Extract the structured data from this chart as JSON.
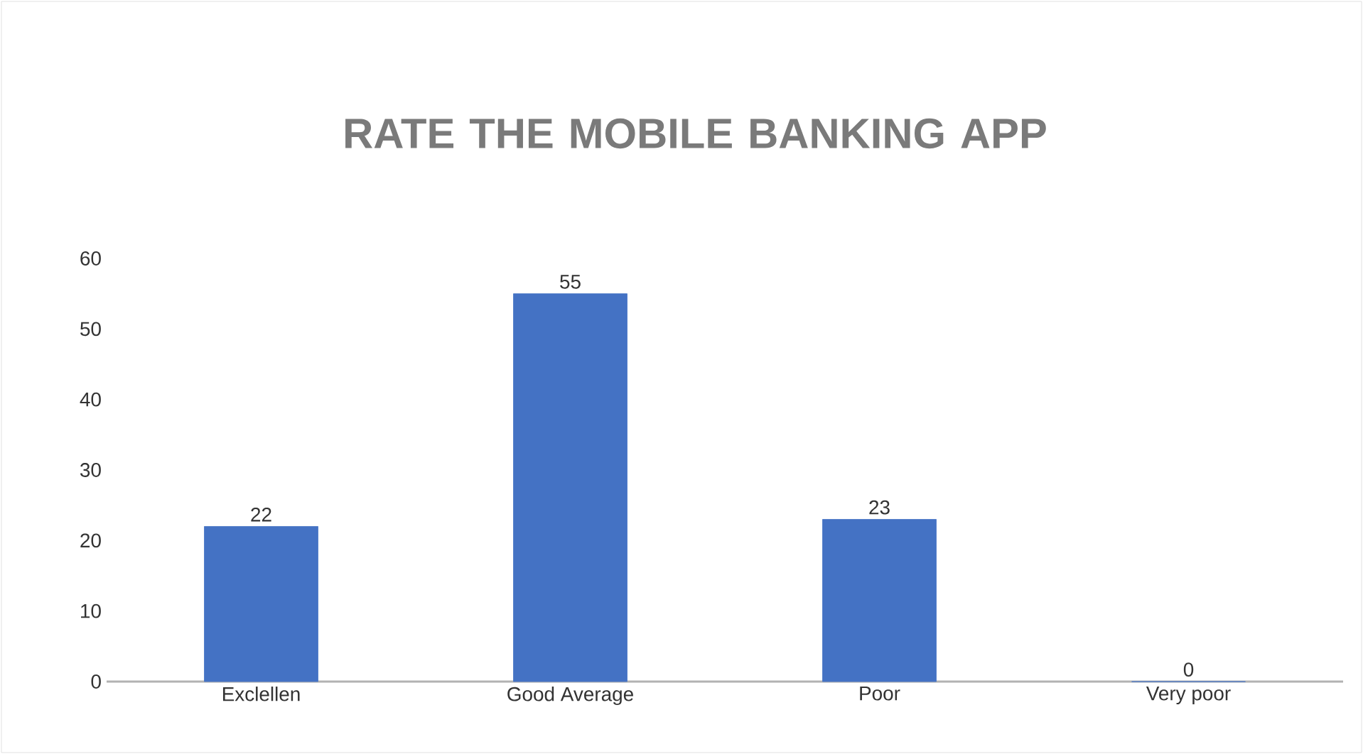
{
  "chart_data": {
    "type": "bar",
    "title": "RATE THE MOBILE BANKING APP",
    "categories": [
      "Exclellen",
      "Good Average",
      "Poor",
      "Very poor"
    ],
    "values": [
      22,
      55,
      23,
      0
    ],
    "color": "#4472c4",
    "ylim": [
      0,
      60
    ],
    "yticks": [
      0,
      10,
      20,
      30,
      40,
      50,
      60
    ],
    "grid": false,
    "data_labels": true
  }
}
